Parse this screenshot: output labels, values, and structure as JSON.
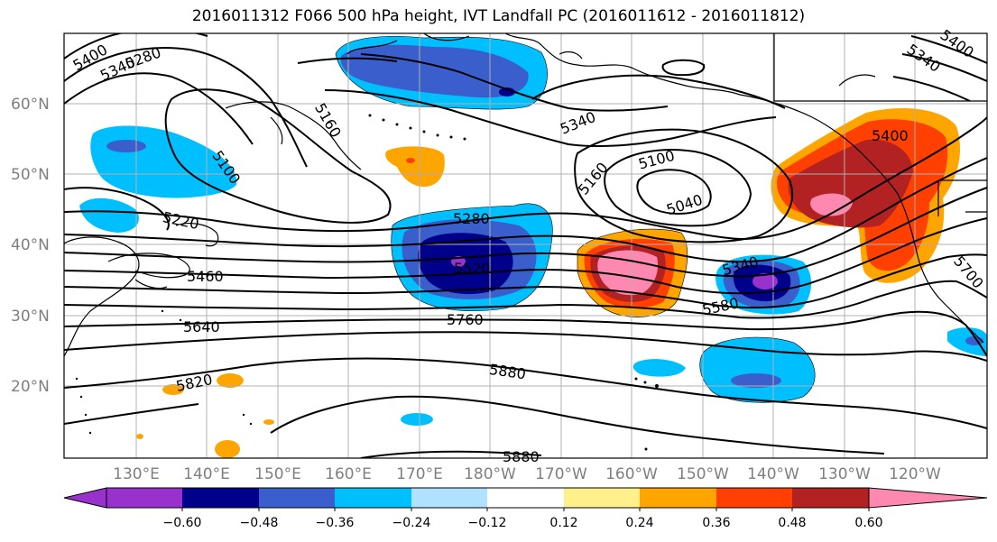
{
  "title": "2016011312 F066 500 hPa height, IVT Landfall PC (2016011612 - 2016011812)",
  "map": {
    "lat_labels": [
      "60°N",
      "50°N",
      "40°N",
      "30°N",
      "20°N"
    ],
    "lon_labels": [
      "130°E",
      "140°E",
      "150°E",
      "160°E",
      "170°E",
      "180°W",
      "170°W",
      "160°W",
      "150°W",
      "140°W",
      "130°W",
      "120°W"
    ],
    "contour_labels": [
      "5400",
      "5340",
      "5280",
      "5160",
      "5100",
      "5220",
      "5460",
      "5640",
      "5820",
      "5280",
      "5520",
      "5760",
      "5880",
      "5880",
      "5340",
      "5160",
      "5100",
      "5040",
      "5340",
      "5580",
      "5400",
      "5700",
      "5340",
      "5400"
    ],
    "colors": {
      "land_coast": "#000000",
      "gridlines": "#b0b0b0",
      "height_contours": "#000000"
    }
  },
  "colorbar": {
    "colors": [
      "#9932cc",
      "#00008b",
      "#3a5fcd",
      "#00bfff",
      "#b0e2ff",
      "#ffffff",
      "#fff08c",
      "#ffa500",
      "#ff4000",
      "#b22222",
      "#ff88b0"
    ],
    "tick_labels": [
      "−0.60",
      "−0.48",
      "−0.36",
      "−0.24",
      "−0.12",
      "0.12",
      "0.24",
      "0.36",
      "0.48",
      "0.60"
    ]
  }
}
